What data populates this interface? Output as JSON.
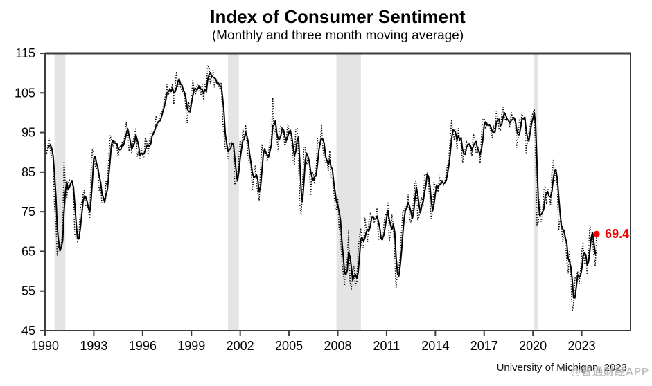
{
  "header": {
    "title": "Index of Consumer Sentiment",
    "subtitle": "(Monthly and three month moving average)"
  },
  "footer": {
    "source": "University of Michigan, 2023",
    "watermark": "@智通财经APP"
  },
  "chart_data": {
    "type": "line",
    "title": "Index of Consumer Sentiment",
    "subtitle": "(Monthly and three month moving average)",
    "source": "University of Michigan, 2023",
    "xlabel": "",
    "ylabel": "",
    "xlim": [
      1990,
      2026
    ],
    "ylim": [
      45,
      115
    ],
    "x_ticks": [
      1990,
      1993,
      1996,
      1999,
      2002,
      2005,
      2008,
      2011,
      2014,
      2017,
      2020,
      2023
    ],
    "y_ticks": [
      45,
      55,
      65,
      75,
      85,
      95,
      105,
      115
    ],
    "grid": false,
    "axis_color": "#3d3d3d",
    "shaded_bands": {
      "color": "#e4e4e4",
      "ranges": [
        [
          1990.58,
          1991.25
        ],
        [
          2001.25,
          2001.92
        ],
        [
          2007.92,
          2009.42
        ],
        [
          2020.08,
          2020.33
        ]
      ]
    },
    "series": [
      {
        "name": "Monthly",
        "style": "dotted",
        "color": "#000000",
        "x_start": 1990,
        "x_step_months": 1,
        "values": [
          93.0,
          89.5,
          91.3,
          93.9,
          90.6,
          88.3,
          88.2,
          76.4,
          72.8,
          63.9,
          66.0,
          65.5,
          66.8,
          70.4,
          87.7,
          81.8,
          78.3,
          82.1,
          82.9,
          82.0,
          83.0,
          78.3,
          69.1,
          68.2,
          67.5,
          68.8,
          76.0,
          77.2,
          79.2,
          80.4,
          76.6,
          76.1,
          75.3,
          73.3,
          85.3,
          91.0,
          89.3,
          86.6,
          85.9,
          85.6,
          80.3,
          81.5,
          77.0,
          77.3,
          77.9,
          82.7,
          81.2,
          88.2,
          94.3,
          93.2,
          91.5,
          92.6,
          92.8,
          91.2,
          89.0,
          91.7,
          91.5,
          92.7,
          91.6,
          95.1,
          97.6,
          95.1,
          90.3,
          92.5,
          89.8,
          92.7,
          94.4,
          96.2,
          88.9,
          90.2,
          88.2,
          91.0,
          89.3,
          88.5,
          93.7,
          92.7,
          89.4,
          92.4,
          94.7,
          95.3,
          94.7,
          96.5,
          99.2,
          96.9,
          97.4,
          99.7,
          100.0,
          101.4,
          103.2,
          104.5,
          107.1,
          104.4,
          106.0,
          105.6,
          107.2,
          102.1,
          106.6,
          110.4,
          106.5,
          108.7,
          106.5,
          105.6,
          105.2,
          104.4,
          100.9,
          97.4,
          102.7,
          100.5,
          103.9,
          108.1,
          105.7,
          104.6,
          106.8,
          107.3,
          106.0,
          104.5,
          107.2,
          103.2,
          107.2,
          105.4,
          112.0,
          111.3,
          107.1,
          109.2,
          110.7,
          106.4,
          108.3,
          107.3,
          106.8,
          105.8,
          107.6,
          98.4,
          94.7,
          90.6,
          91.5,
          88.4,
          92.0,
          92.6,
          92.4,
          91.5,
          81.8,
          82.7,
          83.9,
          88.8,
          93.0,
          90.7,
          95.7,
          93.0,
          96.9,
          92.4,
          88.1,
          87.6,
          86.1,
          80.6,
          84.2,
          86.7,
          82.4,
          79.9,
          77.6,
          86.0,
          92.1,
          89.7,
          90.9,
          89.3,
          87.7,
          89.6,
          93.7,
          92.6,
          103.8,
          94.4,
          95.8,
          94.2,
          90.2,
          95.6,
          96.7,
          95.9,
          94.2,
          91.7,
          92.8,
          97.1,
          95.5,
          94.1,
          92.6,
          87.7,
          86.9,
          96.0,
          96.5,
          89.1,
          76.9,
          74.2,
          81.6,
          91.5,
          91.2,
          86.7,
          88.9,
          87.4,
          79.1,
          84.9,
          84.7,
          82.0,
          85.4,
          93.6,
          92.1,
          91.7,
          96.9,
          91.3,
          88.4,
          87.1,
          88.3,
          85.3,
          90.4,
          83.4,
          83.4,
          80.9,
          76.1,
          75.5,
          78.4,
          70.8,
          69.5,
          62.6,
          59.8,
          56.4,
          61.2,
          63.0,
          70.3,
          57.6,
          55.3,
          60.1,
          61.2,
          56.3,
          57.3,
          65.1,
          68.7,
          70.8,
          66.0,
          65.7,
          73.5,
          70.6,
          67.4,
          72.5,
          74.4,
          73.6,
          73.6,
          72.2,
          73.6,
          76.0,
          67.8,
          68.9,
          68.2,
          67.7,
          71.6,
          74.5,
          74.2,
          77.5,
          67.5,
          69.8,
          74.3,
          71.5,
          63.7,
          55.8,
          59.5,
          60.8,
          63.7,
          69.9,
          75.0,
          75.3,
          76.2,
          76.4,
          79.3,
          73.2,
          72.3,
          74.3,
          78.3,
          82.6,
          82.7,
          72.9,
          73.8,
          77.6,
          78.6,
          76.4,
          84.5,
          84.1,
          85.1,
          82.1,
          77.5,
          73.2,
          75.1,
          82.5,
          81.2,
          81.6,
          80.0,
          84.1,
          81.9,
          82.5,
          81.8,
          82.5,
          84.6,
          86.9,
          88.8,
          93.6,
          98.1,
          95.4,
          93.0,
          95.9,
          90.7,
          96.1,
          93.1,
          91.9,
          87.2,
          90.0,
          91.3,
          92.6,
          92.0,
          91.7,
          91.0,
          89.0,
          94.7,
          93.5,
          90.0,
          89.8,
          91.2,
          87.2,
          93.8,
          98.2,
          98.5,
          96.3,
          96.9,
          97.0,
          97.1,
          95.0,
          93.4,
          96.8,
          95.1,
          100.7,
          98.5,
          95.9,
          95.7,
          99.7,
          101.4,
          98.8,
          98.0,
          98.2,
          97.9,
          96.2,
          100.1,
          98.6,
          97.5,
          98.3,
          91.2,
          93.8,
          98.4,
          97.2,
          100.0,
          98.2,
          98.4,
          89.8,
          93.2,
          95.5,
          96.8,
          99.3,
          99.8,
          101.0,
          89.1,
          71.8,
          72.3,
          78.1,
          72.5,
          74.1,
          80.4,
          81.8,
          76.9,
          80.7,
          79.0,
          76.8,
          84.9,
          88.3,
          82.9,
          85.5,
          81.2,
          70.3,
          72.8,
          71.7,
          67.4,
          70.6,
          67.2,
          62.8,
          59.4,
          65.2,
          58.4,
          50.0,
          51.5,
          58.2,
          58.6,
          59.9,
          56.8,
          59.7,
          64.9,
          67.0,
          62.0,
          63.5,
          59.2,
          64.4,
          71.6,
          69.5,
          68.1,
          63.8,
          61.3,
          69.4
        ]
      },
      {
        "name": "Three month moving average",
        "style": "solid",
        "color": "#000000",
        "derived_from": "Monthly",
        "window_months": 3
      }
    ],
    "annotation": {
      "label": "69.4",
      "value": 69.4,
      "color": "#f40000"
    }
  }
}
